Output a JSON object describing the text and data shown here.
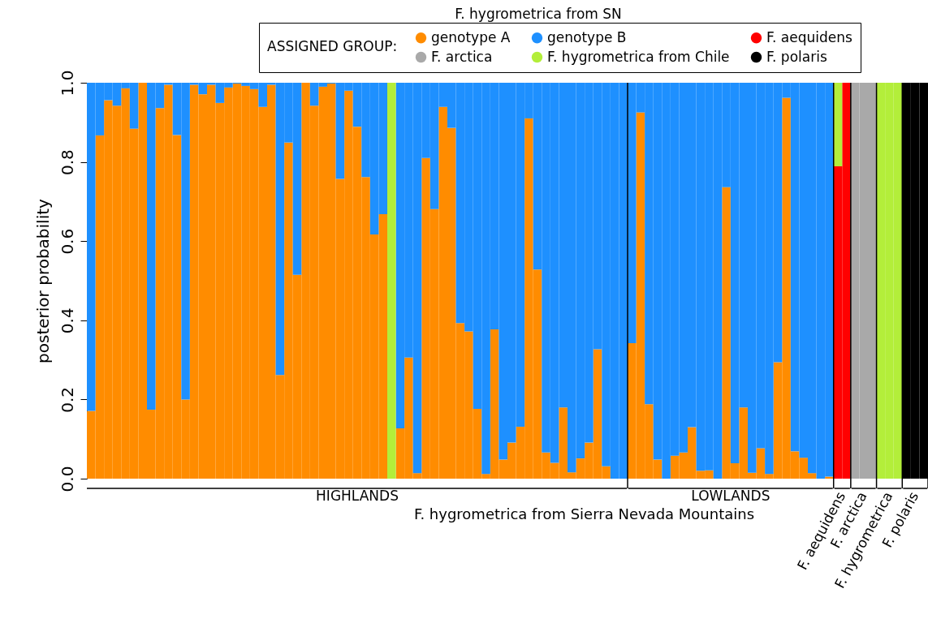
{
  "chart_data": {
    "type": "bar",
    "stacked": true,
    "ylabel": "posterior probability",
    "xlabel": "F. hygrometrica  from Sierra Nevada Mountains",
    "legend_title": "ASSIGNED GROUP:",
    "legend": "top",
    "tick_labels": "y",
    "ylim": [
      0,
      1
    ],
    "yticks": [
      {
        "value": 0,
        "label": "0.0"
      },
      {
        "value": 0.2,
        "label": "0.2"
      },
      {
        "value": 0.4,
        "label": "0.4"
      },
      {
        "value": 0.6,
        "label": "0.6"
      },
      {
        "value": 0.8,
        "label": "0.8"
      },
      {
        "value": 1,
        "label": "1.0"
      }
    ],
    "annotations": [
      "HIGHLANDS",
      "LOWLANDS",
      "F. aequidens",
      "F. arctica",
      "F. hygrometrica",
      "F. polaris",
      "F. hygrometrica from SN"
    ],
    "categories": [
      null,
      null,
      null,
      null,
      null,
      null,
      null,
      null,
      null,
      null,
      null,
      null,
      null,
      null,
      null,
      null,
      null,
      null,
      null,
      null,
      null,
      null,
      null,
      null,
      null,
      null,
      null,
      null,
      null,
      null,
      null,
      null,
      null,
      null,
      null,
      null,
      null,
      null,
      null,
      null,
      null,
      null,
      null,
      null,
      null,
      null,
      null,
      null,
      null,
      null,
      null,
      null,
      null,
      null,
      null,
      null,
      null,
      null,
      null,
      null,
      null,
      null,
      null,
      null,
      null,
      null,
      null,
      null,
      null,
      null,
      null,
      null,
      null,
      null,
      null,
      null,
      null,
      null,
      null,
      null,
      null,
      null,
      null,
      null,
      null,
      null,
      null,
      null,
      null,
      null,
      null,
      null,
      null,
      null,
      null,
      null,
      null,
      null
    ],
    "series": [
      {
        "name": "genotype A",
        "color": "#ff8c00",
        "values": [
          0.171,
          0.867,
          0.956,
          0.942,
          0.986,
          0.884,
          1,
          0.174,
          0.936,
          0.995,
          0.868,
          0.2,
          0.995,
          0.971,
          0.995,
          0.949,
          0.988,
          0.998,
          0.992,
          0.984,
          0.939,
          0.995,
          0.262,
          0.849,
          0.515,
          1,
          0.942,
          0.99,
          0.998,
          0.757,
          0.98,
          0.889,
          0.762,
          0.617,
          0.668,
          null,
          0.127,
          0.306,
          0.014,
          0.81,
          0.681,
          0.939,
          0.886,
          0.393,
          0.372,
          0.176,
          0.012,
          0.377,
          0.048,
          0.091,
          0.131,
          0.91,
          0.528,
          0.066,
          0.04,
          0.18,
          0.016,
          0.051,
          0.091,
          0.327,
          0.031,
          0,
          0,
          0.342,
          0.925,
          0.188,
          0.048,
          0,
          0.058,
          0.066,
          0.13,
          0.02,
          0.021,
          0,
          0.736,
          0.039,
          0.18,
          0.015,
          0.077,
          0.012,
          0.294,
          0.962,
          0.069,
          0.053,
          0.014,
          0,
          0.005,
          null,
          null,
          null,
          null,
          null,
          null,
          null,
          null,
          null,
          null,
          null
        ]
      },
      {
        "name": "genotype B",
        "color": "#1e90ff",
        "values": [
          0.829,
          0.133,
          0.044,
          0.058,
          0.014,
          0.116,
          0,
          0.826,
          0.064,
          0.005,
          0.132,
          0.8,
          0.005,
          0.029,
          0.005,
          0.051,
          0.012,
          0.002,
          0.008,
          0.016,
          0.061,
          0.005,
          0.738,
          0.151,
          0.485,
          0,
          0.058,
          0.01,
          0.002,
          0.243,
          0.02,
          0.111,
          0.238,
          0.383,
          0.332,
          null,
          0.873,
          0.694,
          0.986,
          0.19,
          0.319,
          0.061,
          0.114,
          0.607,
          0.628,
          0.824,
          0.988,
          0.623,
          0.952,
          0.909,
          0.869,
          0.09,
          0.472,
          0.934,
          0.96,
          0.82,
          0.984,
          0.949,
          0.909,
          0.673,
          0.969,
          1,
          1,
          0.658,
          0.075,
          0.812,
          0.952,
          1,
          0.942,
          0.934,
          0.87,
          0.98,
          0.979,
          1,
          0.264,
          0.961,
          0.82,
          0.985,
          0.923,
          0.988,
          0.706,
          0.038,
          0.931,
          0.947,
          0.986,
          1,
          0.995,
          null,
          null,
          null,
          null,
          null,
          null,
          null,
          null,
          null,
          null,
          null
        ]
      },
      {
        "name": "F. aequidens",
        "color": "#ff0000",
        "values": [
          null,
          null,
          null,
          null,
          null,
          null,
          null,
          null,
          null,
          null,
          null,
          null,
          null,
          null,
          null,
          null,
          null,
          null,
          null,
          null,
          null,
          null,
          null,
          null,
          null,
          null,
          null,
          null,
          null,
          null,
          null,
          null,
          null,
          null,
          null,
          null,
          null,
          null,
          null,
          null,
          null,
          null,
          null,
          null,
          null,
          null,
          null,
          null,
          null,
          null,
          null,
          null,
          null,
          null,
          null,
          null,
          null,
          null,
          null,
          null,
          null,
          null,
          null,
          null,
          null,
          null,
          null,
          null,
          null,
          null,
          null,
          null,
          null,
          null,
          null,
          null,
          null,
          null,
          null,
          null,
          null,
          null,
          null,
          null,
          null,
          null,
          null,
          0.789,
          1,
          null,
          null,
          null,
          null,
          null,
          null,
          null,
          null,
          null
        ]
      },
      {
        "name": "F. arctica",
        "color": "#a9a9a9",
        "values": [
          null,
          null,
          null,
          null,
          null,
          null,
          null,
          null,
          null,
          null,
          null,
          null,
          null,
          null,
          null,
          null,
          null,
          null,
          null,
          null,
          null,
          null,
          null,
          null,
          null,
          null,
          null,
          null,
          null,
          null,
          null,
          null,
          null,
          null,
          null,
          null,
          null,
          null,
          null,
          null,
          null,
          null,
          null,
          null,
          null,
          null,
          null,
          null,
          null,
          null,
          null,
          null,
          null,
          null,
          null,
          null,
          null,
          null,
          null,
          null,
          null,
          null,
          null,
          null,
          null,
          null,
          null,
          null,
          null,
          null,
          null,
          null,
          null,
          null,
          null,
          null,
          null,
          null,
          null,
          null,
          null,
          null,
          null,
          null,
          null,
          null,
          null,
          null,
          null,
          1,
          1,
          1,
          null,
          null,
          null,
          null,
          null,
          null
        ]
      },
      {
        "name": "F. hygrometrica from Chile",
        "color": "#b3ee3a",
        "values": [
          null,
          null,
          null,
          null,
          null,
          null,
          null,
          null,
          null,
          null,
          null,
          null,
          null,
          null,
          null,
          null,
          null,
          null,
          null,
          null,
          null,
          null,
          null,
          null,
          null,
          null,
          null,
          null,
          null,
          null,
          null,
          null,
          null,
          null,
          null,
          1,
          null,
          null,
          null,
          null,
          null,
          null,
          null,
          null,
          null,
          null,
          null,
          null,
          null,
          null,
          null,
          null,
          null,
          null,
          null,
          null,
          null,
          null,
          null,
          null,
          null,
          null,
          null,
          null,
          null,
          null,
          null,
          null,
          null,
          null,
          null,
          null,
          null,
          null,
          null,
          null,
          null,
          null,
          null,
          null,
          null,
          null,
          null,
          null,
          null,
          null,
          null,
          0.211,
          null,
          null,
          null,
          null,
          1,
          1,
          1,
          null,
          null,
          null
        ]
      },
      {
        "name": "F. polaris",
        "color": "#000000",
        "values": [
          null,
          null,
          null,
          null,
          null,
          null,
          null,
          null,
          null,
          null,
          null,
          null,
          null,
          null,
          null,
          null,
          null,
          null,
          null,
          null,
          null,
          null,
          null,
          null,
          null,
          null,
          null,
          null,
          null,
          null,
          null,
          null,
          null,
          null,
          null,
          null,
          null,
          null,
          null,
          null,
          null,
          null,
          null,
          null,
          null,
          null,
          null,
          null,
          null,
          null,
          null,
          null,
          null,
          null,
          null,
          null,
          null,
          null,
          null,
          null,
          null,
          null,
          null,
          null,
          null,
          null,
          null,
          null,
          null,
          null,
          null,
          null,
          null,
          null,
          null,
          null,
          null,
          null,
          null,
          null,
          null,
          null,
          null,
          null,
          null,
          null,
          null,
          null,
          null,
          null,
          null,
          null,
          null,
          null,
          null,
          1,
          1,
          1
        ]
      }
    ]
  }
}
